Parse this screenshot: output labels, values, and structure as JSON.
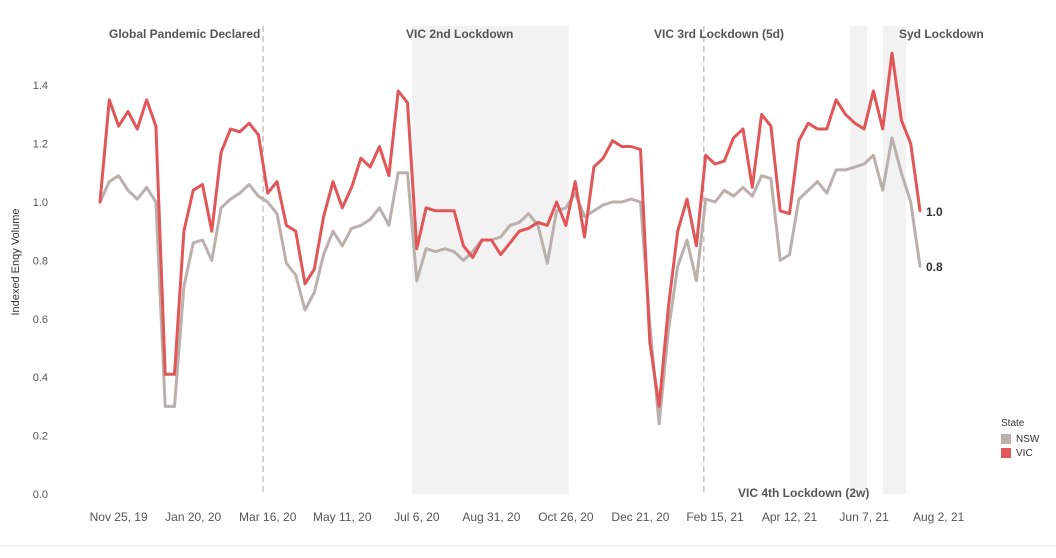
{
  "chart_data": {
    "type": "line",
    "ylabel": "Indexed Enqy Volume",
    "ylim": [
      0,
      1.55
    ],
    "y_ticks": [
      "0.0",
      "0.2",
      "0.4",
      "0.6",
      "0.8",
      "1.0",
      "1.2",
      "1.4"
    ],
    "x_ticks": [
      {
        "label": "Nov 25, 19",
        "index": 2
      },
      {
        "label": "Jan 20, 20",
        "index": 10
      },
      {
        "label": "Mar 16, 20",
        "index": 18
      },
      {
        "label": "May 11, 20",
        "index": 26
      },
      {
        "label": "Jul 6, 20",
        "index": 34
      },
      {
        "label": "Aug 31, 20",
        "index": 42
      },
      {
        "label": "Oct 26, 20",
        "index": 50
      },
      {
        "label": "Dec 21, 20",
        "index": 58
      },
      {
        "label": "Feb 15, 21",
        "index": 66
      },
      {
        "label": "Apr 12, 21",
        "index": 74
      },
      {
        "label": "Jun 7, 21",
        "index": 82
      },
      {
        "label": "Aug 2, 21",
        "index": 90
      }
    ],
    "legend_title": "State",
    "legend_position": "right",
    "grid": false,
    "series": [
      {
        "name": "NSW",
        "color": "#bab0ac",
        "end_label": "0.8",
        "values": [
          1.0,
          1.07,
          1.09,
          1.04,
          1.01,
          1.05,
          1.0,
          0.3,
          0.3,
          0.71,
          0.86,
          0.87,
          0.8,
          0.98,
          1.01,
          1.03,
          1.06,
          1.02,
          1.0,
          0.96,
          0.79,
          0.75,
          0.63,
          0.69,
          0.82,
          0.9,
          0.85,
          0.91,
          0.92,
          0.94,
          0.98,
          0.92,
          1.1,
          1.1,
          0.73,
          0.84,
          0.83,
          0.84,
          0.83,
          0.8,
          0.83,
          0.87,
          0.87,
          0.88,
          0.92,
          0.93,
          0.96,
          0.92,
          0.79,
          0.97,
          0.98,
          1.03,
          0.95,
          0.97,
          0.99,
          1.0,
          1.0,
          1.01,
          1.0,
          0.58,
          0.24,
          0.56,
          0.78,
          0.87,
          0.73,
          1.01,
          1.0,
          1.04,
          1.02,
          1.05,
          1.02,
          1.09,
          1.08,
          0.8,
          0.82,
          1.01,
          1.04,
          1.07,
          1.03,
          1.11,
          1.11,
          1.12,
          1.13,
          1.16,
          1.04,
          1.22,
          1.1,
          1.0,
          0.78
        ]
      },
      {
        "name": "VIC",
        "color": "#e15759",
        "end_label": "1.0",
        "values": [
          1.0,
          1.35,
          1.26,
          1.31,
          1.25,
          1.35,
          1.26,
          0.41,
          0.41,
          0.9,
          1.04,
          1.06,
          0.9,
          1.17,
          1.25,
          1.24,
          1.27,
          1.23,
          1.03,
          1.07,
          0.92,
          0.9,
          0.72,
          0.77,
          0.95,
          1.07,
          0.98,
          1.05,
          1.15,
          1.12,
          1.19,
          1.09,
          1.38,
          1.34,
          0.84,
          0.98,
          0.97,
          0.97,
          0.97,
          0.85,
          0.81,
          0.87,
          0.87,
          0.82,
          0.86,
          0.9,
          0.91,
          0.93,
          0.92,
          1.0,
          0.92,
          1.07,
          0.88,
          1.12,
          1.15,
          1.21,
          1.19,
          1.19,
          1.18,
          0.52,
          0.3,
          0.64,
          0.9,
          1.01,
          0.85,
          1.16,
          1.13,
          1.14,
          1.22,
          1.25,
          1.05,
          1.3,
          1.26,
          0.97,
          0.96,
          1.21,
          1.27,
          1.25,
          1.25,
          1.35,
          1.3,
          1.27,
          1.25,
          1.38,
          1.25,
          1.51,
          1.28,
          1.2,
          0.97
        ]
      }
    ],
    "annotations": [
      {
        "id": "pandemic",
        "label": "Global Pandemic Declared",
        "kind": "line",
        "index": 17.5
      },
      {
        "id": "vic2",
        "label": "VIC 2nd Lockdown",
        "kind": "band",
        "start": 33.5,
        "end": 50.3
      },
      {
        "id": "vic3",
        "label": "VIC 3rd Lockdown (5d)",
        "kind": "line",
        "index": 64.8
      },
      {
        "id": "vic4",
        "label": "VIC 4th Lockdown (2w)",
        "kind": "band",
        "start": 80.5,
        "end": 82.3
      },
      {
        "id": "syd",
        "label": "Syd Lockdown",
        "kind": "band",
        "start": 84.0,
        "end": 86.5
      }
    ]
  }
}
